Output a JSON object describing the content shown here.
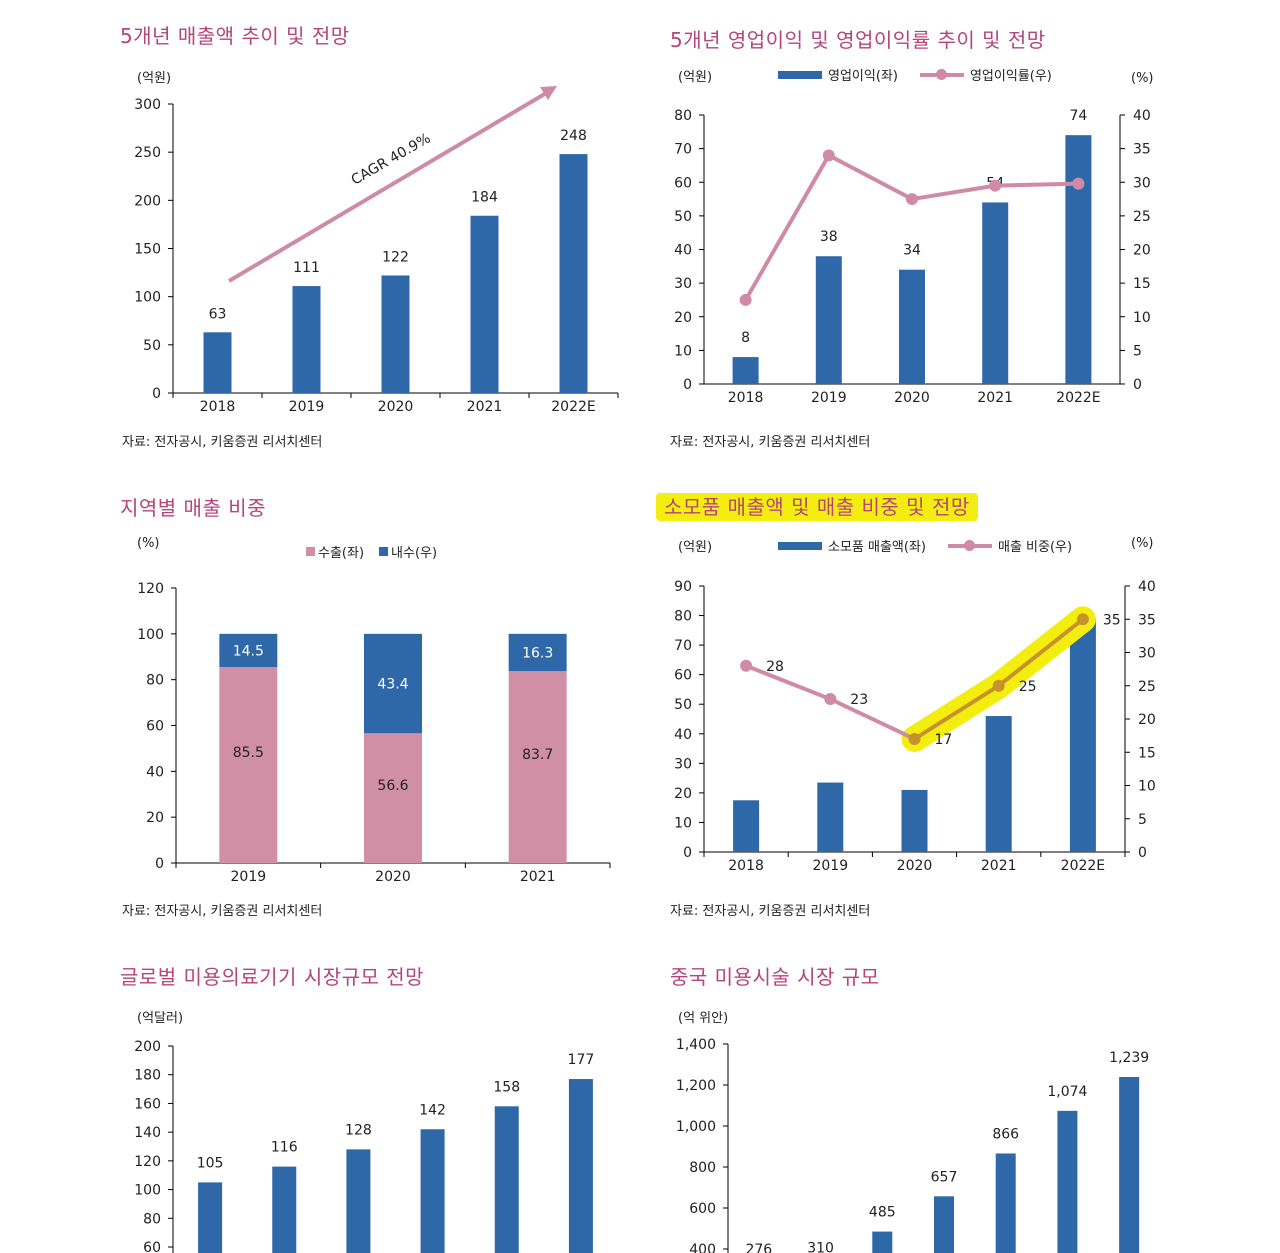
{
  "colors": {
    "bar": "#2f68a8",
    "line": "#cf8aa5",
    "export": "#d18fa6",
    "title": "#b5457a",
    "highlight": "#f4ee10"
  },
  "chart_data": [
    {
      "id": "revenue",
      "type": "bar",
      "title": "5개년 매출액 추이 및 전망",
      "unit": "(억원)",
      "categories": [
        "2018",
        "2019",
        "2020",
        "2021",
        "2022E"
      ],
      "values": [
        63,
        111,
        122,
        184,
        248
      ],
      "ylim": [
        0,
        300
      ],
      "yticks": [
        0,
        50,
        100,
        150,
        200,
        250,
        300
      ],
      "annotation": "CAGR 40.9%",
      "source": "자료: 전자공시, 키움증권 리서치센터"
    },
    {
      "id": "op-profit",
      "type": "bar+line",
      "title": "5개년 영업이익 및 영업이익률 추이 및 전망",
      "unit_left": "(억원)",
      "unit_right": "(%)",
      "legend": [
        "영업이익(좌)",
        "영업이익률(우)"
      ],
      "categories": [
        "2018",
        "2019",
        "2020",
        "2021",
        "2022E"
      ],
      "bar_values": [
        8,
        38,
        34,
        54,
        74
      ],
      "line_values": [
        12.5,
        34,
        27.5,
        29.5,
        29.8
      ],
      "ylim_left": [
        0,
        80
      ],
      "yticks_left": [
        0,
        10,
        20,
        30,
        40,
        50,
        60,
        70,
        80
      ],
      "ylim_right": [
        0,
        40
      ],
      "yticks_right": [
        0,
        5,
        10,
        15,
        20,
        25,
        30,
        35,
        40
      ],
      "source": "자료: 전자공시, 키움증권 리서치센터"
    },
    {
      "id": "region",
      "type": "stacked-bar",
      "title": "지역별 매출 비중",
      "unit": "(%)",
      "legend": [
        "수출(좌)",
        "내수(우)"
      ],
      "categories": [
        "2019",
        "2020",
        "2021"
      ],
      "series": [
        {
          "name": "수출",
          "values": [
            85.5,
            56.6,
            83.7
          ],
          "labels": [
            "85.5",
            "56.6",
            "83.7"
          ]
        },
        {
          "name": "내수",
          "values": [
            14.5,
            43.4,
            16.3
          ],
          "labels": [
            "14.5",
            "43.4",
            "16.3"
          ]
        }
      ],
      "ylim": [
        0,
        120
      ],
      "yticks": [
        0,
        20,
        40,
        60,
        80,
        100,
        120
      ],
      "source": "자료: 전자공시, 키움증권 리서치센터"
    },
    {
      "id": "consumables",
      "type": "bar+line",
      "title": "소모품 매출액 및 매출 비중 및 전망",
      "unit_left": "(억원)",
      "unit_right": "(%)",
      "legend": [
        "소모품 매출액(좌)",
        "매출 비중(우)"
      ],
      "categories": [
        "2018",
        "2019",
        "2020",
        "2021",
        "2022E"
      ],
      "bar_values": [
        17.5,
        23.5,
        21,
        46,
        79
      ],
      "line_values": [
        28,
        23,
        17,
        25,
        35
      ],
      "line_labels": [
        "28",
        "23",
        "17",
        "25",
        "35"
      ],
      "ylim_left": [
        0,
        90
      ],
      "yticks_left": [
        0,
        10,
        20,
        30,
        40,
        50,
        60,
        70,
        80,
        90
      ],
      "ylim_right": [
        0,
        40
      ],
      "yticks_right": [
        0,
        5,
        10,
        15,
        20,
        25,
        30,
        35,
        40
      ],
      "source": "자료: 전자공시, 키움증권 리서치센터"
    },
    {
      "id": "global-medical",
      "type": "bar",
      "title": "글로벌 미용의료기기 시장규모 전망",
      "unit": "(억달러)",
      "values": [
        105,
        116,
        128,
        142,
        158,
        177
      ],
      "ylim": [
        60,
        200
      ],
      "yticks": [
        60,
        80,
        100,
        120,
        140,
        160,
        180,
        200
      ]
    },
    {
      "id": "china-market",
      "type": "bar",
      "title": "중국 미용시술 시장 규모",
      "unit": "(억 위안)",
      "values": [
        276,
        310,
        485,
        657,
        866,
        1074,
        1239
      ],
      "value_labels": [
        "276",
        "310",
        "485",
        "657",
        "866",
        "1,074",
        "1,239"
      ],
      "ylim": [
        400,
        1400
      ],
      "yticks": [
        400,
        600,
        800,
        1000,
        1200,
        1400
      ],
      "ytick_labels": [
        "400",
        "600",
        "800",
        "1,000",
        "1,200",
        "1,400"
      ]
    }
  ]
}
